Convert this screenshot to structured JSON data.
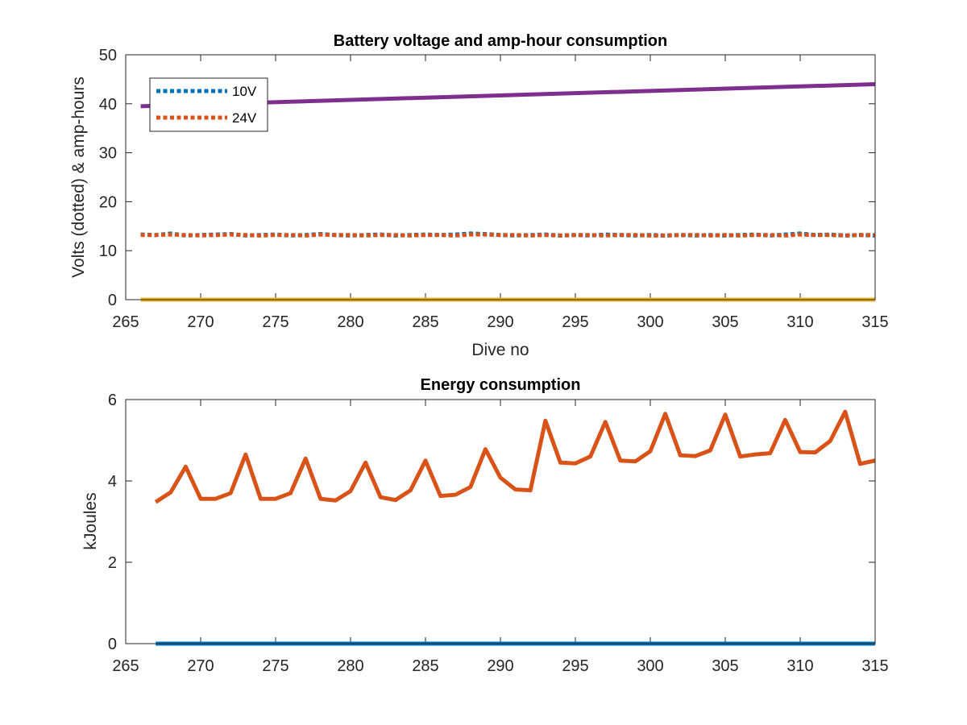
{
  "colors": {
    "blue": "#0072BD",
    "orange": "#D95319",
    "yellow": "#EDB120",
    "purple": "#7E2F8E",
    "axis": "#262626"
  },
  "chart_data": [
    {
      "type": "line",
      "title": "Battery voltage and amp-hour consumption",
      "xlabel": "Dive no",
      "ylabel": "Volts (dotted) & amp-hours",
      "xlim": [
        265,
        315
      ],
      "ylim": [
        0,
        50
      ],
      "xticks": [
        265,
        270,
        275,
        280,
        285,
        290,
        295,
        300,
        305,
        310,
        315
      ],
      "yticks": [
        0,
        10,
        20,
        30,
        40,
        50
      ],
      "legend": {
        "position": "top-left",
        "entries": [
          "10V",
          "24V"
        ]
      },
      "series": [
        {
          "name": "10V",
          "style": "dotted",
          "color": "#0072BD",
          "x": [
            266,
            267,
            268,
            269,
            270,
            271,
            272,
            273,
            274,
            275,
            276,
            277,
            278,
            279,
            280,
            281,
            282,
            283,
            284,
            285,
            286,
            287,
            288,
            289,
            290,
            291,
            292,
            293,
            294,
            295,
            296,
            297,
            298,
            299,
            300,
            301,
            302,
            303,
            304,
            305,
            306,
            307,
            308,
            309,
            310,
            311,
            312,
            313,
            314,
            315
          ],
          "values": [
            13.3,
            13.2,
            13.5,
            13.1,
            13.2,
            13.3,
            13.4,
            13.1,
            13.2,
            13.3,
            13.1,
            13.2,
            13.4,
            13.2,
            13.1,
            13.2,
            13.3,
            13.1,
            13.2,
            13.3,
            13.2,
            13.3,
            13.5,
            13.4,
            13.2,
            13.1,
            13.2,
            13.3,
            13.1,
            13.2,
            13.1,
            13.3,
            13.2,
            13.1,
            13.2,
            13.1,
            13.2,
            13.1,
            13.2,
            13.1,
            13.2,
            13.3,
            13.1,
            13.3,
            13.5,
            13.2,
            13.3,
            13.1,
            13.2,
            13.1
          ]
        },
        {
          "name": "24V",
          "style": "dotted",
          "color": "#D95319",
          "x": [
            266,
            267,
            268,
            269,
            270,
            271,
            272,
            273,
            274,
            275,
            276,
            277,
            278,
            279,
            280,
            281,
            282,
            283,
            284,
            285,
            286,
            287,
            288,
            289,
            290,
            291,
            292,
            293,
            294,
            295,
            296,
            297,
            298,
            299,
            300,
            301,
            302,
            303,
            304,
            305,
            306,
            307,
            308,
            309,
            310,
            311,
            312,
            313,
            314,
            315
          ],
          "values": [
            13.2,
            13.2,
            13.3,
            13.2,
            13.1,
            13.2,
            13.3,
            13.2,
            13.1,
            13.2,
            13.2,
            13.1,
            13.3,
            13.2,
            13.2,
            13.1,
            13.2,
            13.2,
            13.1,
            13.2,
            13.2,
            13.1,
            13.3,
            13.3,
            13.2,
            13.2,
            13.1,
            13.2,
            13.1,
            13.2,
            13.2,
            13.1,
            13.2,
            13.2,
            13.1,
            13.1,
            13.2,
            13.2,
            13.1,
            13.2,
            13.1,
            13.2,
            13.2,
            13.1,
            13.3,
            13.2,
            13.2,
            13.1,
            13.2,
            13.2
          ]
        },
        {
          "style": "solid",
          "color": "#EDB120",
          "x": [
            266,
            315
          ],
          "values": [
            0,
            0
          ]
        },
        {
          "style": "solid",
          "color": "#7E2F8E",
          "x": [
            266,
            315
          ],
          "values": [
            39.5,
            44
          ]
        }
      ]
    },
    {
      "type": "line",
      "title": "Energy consumption",
      "xlabel": "",
      "ylabel": "kJoules",
      "xlim": [
        265,
        315
      ],
      "ylim": [
        0,
        6
      ],
      "xticks": [
        265,
        270,
        275,
        280,
        285,
        290,
        295,
        300,
        305,
        310,
        315
      ],
      "yticks": [
        0,
        2,
        4,
        6
      ],
      "series": [
        {
          "style": "solid",
          "color": "#0072BD",
          "x": [
            267,
            315
          ],
          "values": [
            0,
            0
          ]
        },
        {
          "style": "solid",
          "color": "#D95319",
          "x": [
            267,
            268,
            269,
            270,
            271,
            272,
            273,
            274,
            275,
            276,
            277,
            278,
            279,
            280,
            281,
            282,
            283,
            284,
            285,
            286,
            287,
            288,
            289,
            290,
            291,
            292,
            293,
            294,
            295,
            296,
            297,
            298,
            299,
            300,
            301,
            302,
            303,
            304,
            305,
            306,
            307,
            308,
            309,
            310,
            311,
            312,
            313,
            314,
            315
          ],
          "values": [
            3.48,
            3.72,
            4.35,
            3.56,
            3.56,
            3.7,
            4.65,
            3.56,
            3.56,
            3.7,
            4.55,
            3.56,
            3.52,
            3.75,
            4.45,
            3.6,
            3.53,
            3.77,
            4.5,
            3.63,
            3.66,
            3.85,
            4.78,
            4.08,
            3.79,
            3.77,
            5.48,
            4.45,
            4.43,
            4.6,
            5.45,
            4.5,
            4.48,
            4.73,
            5.65,
            4.63,
            4.61,
            4.75,
            5.63,
            4.6,
            4.65,
            4.68,
            5.5,
            4.71,
            4.7,
            4.98,
            5.7,
            4.42,
            4.5
          ]
        }
      ]
    }
  ]
}
